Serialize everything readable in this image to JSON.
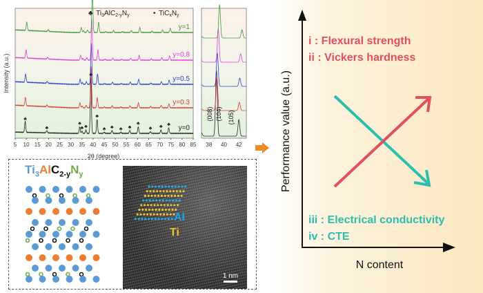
{
  "xrd": {
    "ylabel": "Intensity (a.u.)",
    "xlabel": "2θ (degree)",
    "legend": [
      {
        "symbol": "♣",
        "label_main": "Ti",
        "sub1": "3",
        "mid": "AlC",
        "sub2": "2-y",
        "end": "N",
        "sub3": "y"
      },
      {
        "symbol": "•",
        "label_main": "TiC",
        "sub1": "x",
        "mid": "N",
        "sub2": "y"
      }
    ]
  },
  "chart_data": [
    {
      "type": "line",
      "title": "",
      "xlabel": "2θ (degree)",
      "ylabel": "Intensity (a.u.)",
      "xlim": [
        5,
        85
      ],
      "xticks": [
        5,
        10,
        15,
        20,
        25,
        30,
        35,
        40,
        45,
        50,
        55,
        60,
        65,
        70,
        75,
        80,
        85
      ],
      "peaks_2theta": [
        9.5,
        19.2,
        34.0,
        35.0,
        36.8,
        39.0,
        41.8,
        45.0,
        48.5,
        52.5,
        56.5,
        60.3,
        65.8,
        70.5,
        74.0
      ],
      "peak_rel_intensity": [
        0.2,
        0.04,
        0.12,
        0.04,
        0.06,
        1.0,
        0.25,
        0.02,
        0.05,
        0.02,
        0.05,
        0.12,
        0.03,
        0.06,
        0.1
      ],
      "series": [
        {
          "name": "y=0",
          "color": "#222222",
          "shift": 0.0
        },
        {
          "name": "y=0.3",
          "color": "#e03838",
          "shift": 0.1
        },
        {
          "name": "y=0.5",
          "color": "#2b3fd0",
          "shift": 0.2
        },
        {
          "name": "y=0.8",
          "color": "#dd3fdd",
          "shift": 0.4
        },
        {
          "name": "y=1",
          "color": "#3c9a3c",
          "shift": 0.7
        }
      ],
      "grid": false
    },
    {
      "type": "line",
      "xlim": [
        37,
        43
      ],
      "xticks": [
        38,
        40,
        42
      ],
      "peak_labels": [
        "(008)",
        "(104)",
        "(105)"
      ],
      "peaks_2theta": [
        37.0,
        39.0,
        39.5,
        42.0
      ],
      "series_names": [
        "y=0",
        "y=0.3",
        "y=0.5",
        "y=0.8",
        "y=1"
      ]
    }
  ],
  "structure": {
    "formula": {
      "ti": "Ti",
      "ti_sub": "3",
      "al": "Al",
      "c": "C",
      "c_sub": "2-y",
      "n": "N",
      "n_sub": "y"
    }
  },
  "tem": {
    "al_label": "Al",
    "ti_label": "Ti",
    "scale_bar": "1 nm"
  },
  "trend": {
    "ylabel": "Performance value (a.u.)",
    "xlabel": "N content",
    "increasing": [
      "i : Flexural strength",
      "ii : Vickers hardness"
    ],
    "decreasing": [
      "iii : Electrical conductivity",
      "iv : CTE"
    ],
    "colors": {
      "increasing": "#e0505e",
      "decreasing": "#2bbfae",
      "arrow": "#ef8a2c"
    }
  }
}
